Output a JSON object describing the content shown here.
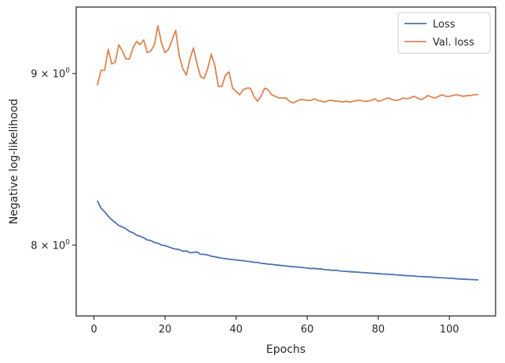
{
  "chart_data": {
    "type": "line",
    "xlabel": "Epochs",
    "ylabel": "Negative log-likelihood",
    "yscale": "log",
    "xlim": [
      -5,
      113
    ],
    "ylim": [
      7.62,
      9.42
    ],
    "grid": false,
    "legend_position": "top-right",
    "x_ticks": [
      {
        "value": 0,
        "label": "0"
      },
      {
        "value": 20,
        "label": "20"
      },
      {
        "value": 40,
        "label": "40"
      },
      {
        "value": 60,
        "label": "60"
      },
      {
        "value": 80,
        "label": "80"
      },
      {
        "value": 100,
        "label": "100"
      }
    ],
    "y_ticks": [
      {
        "value": 8,
        "base": "8",
        "label": "8 × 10",
        "exponent": "0"
      },
      {
        "value": 9,
        "base": "9",
        "label": "9 × 10",
        "exponent": "0"
      }
    ],
    "x_start": 1,
    "series": [
      {
        "name": "Loss",
        "color": "#4c72b0",
        "values": [
          8.245,
          8.205,
          8.185,
          8.16,
          8.14,
          8.125,
          8.108,
          8.1,
          8.09,
          8.075,
          8.068,
          8.055,
          8.048,
          8.04,
          8.028,
          8.025,
          8.014,
          8.01,
          8.0,
          7.997,
          7.99,
          7.983,
          7.978,
          7.975,
          7.966,
          7.968,
          7.958,
          7.96,
          7.962,
          7.95,
          7.949,
          7.946,
          7.939,
          7.936,
          7.932,
          7.928,
          7.926,
          7.923,
          7.921,
          7.919,
          7.916,
          7.915,
          7.911,
          7.91,
          7.906,
          7.905,
          7.901,
          7.899,
          7.896,
          7.895,
          7.892,
          7.89,
          7.888,
          7.886,
          7.884,
          7.882,
          7.881,
          7.879,
          7.877,
          7.875,
          7.872,
          7.873,
          7.87,
          7.87,
          7.866,
          7.865,
          7.862,
          7.863,
          7.86,
          7.858,
          7.857,
          7.855,
          7.854,
          7.853,
          7.851,
          7.85,
          7.849,
          7.847,
          7.846,
          7.845,
          7.843,
          7.842,
          7.841,
          7.84,
          7.838,
          7.837,
          7.835,
          7.834,
          7.833,
          7.832,
          7.83,
          7.829,
          7.828,
          7.827,
          7.826,
          7.824,
          7.823,
          7.822,
          7.821,
          7.82,
          7.819,
          7.817,
          7.816,
          7.815,
          7.814,
          7.813,
          7.812,
          7.811
        ]
      },
      {
        "name": "Val. loss",
        "color": "#dd8452",
        "values": [
          8.93,
          9.02,
          9.02,
          9.15,
          9.06,
          9.07,
          9.18,
          9.14,
          9.09,
          9.09,
          9.16,
          9.2,
          9.18,
          9.21,
          9.13,
          9.14,
          9.18,
          9.3,
          9.19,
          9.13,
          9.15,
          9.21,
          9.27,
          9.11,
          9.03,
          8.99,
          9.09,
          9.16,
          9.06,
          8.98,
          8.97,
          9.03,
          9.12,
          9.05,
          8.92,
          8.92,
          8.99,
          9.01,
          8.91,
          8.89,
          8.87,
          8.9,
          8.91,
          8.91,
          8.86,
          8.83,
          8.86,
          8.91,
          8.9,
          8.87,
          8.86,
          8.85,
          8.85,
          8.85,
          8.83,
          8.82,
          8.83,
          8.84,
          8.84,
          8.835,
          8.835,
          8.845,
          8.835,
          8.83,
          8.825,
          8.835,
          8.835,
          8.83,
          8.83,
          8.825,
          8.83,
          8.825,
          8.83,
          8.835,
          8.835,
          8.83,
          8.83,
          8.835,
          8.845,
          8.83,
          8.835,
          8.845,
          8.85,
          8.84,
          8.835,
          8.84,
          8.85,
          8.845,
          8.85,
          8.86,
          8.85,
          8.84,
          8.85,
          8.865,
          8.855,
          8.85,
          8.86,
          8.87,
          8.86,
          8.86,
          8.865,
          8.87,
          8.865,
          8.86,
          8.865,
          8.865,
          8.87,
          8.87
        ]
      }
    ]
  }
}
